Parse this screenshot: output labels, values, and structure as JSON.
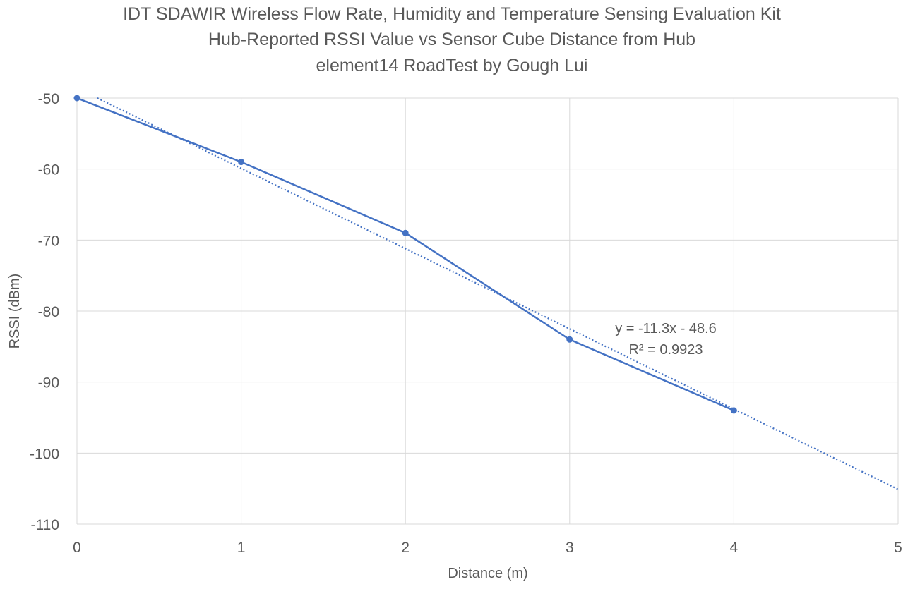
{
  "chart_data": {
    "type": "scatter",
    "title": [
      "IDT SDAWIR Wireless Flow Rate, Humidity and Temperature Sensing Evaluation Kit",
      "Hub-Reported RSSI Value vs Sensor Cube Distance from Hub",
      "element14 RoadTest by Gough Lui"
    ],
    "xlabel": "Distance (m)",
    "ylabel": "RSSI (dBm)",
    "xlim": [
      0,
      5
    ],
    "ylim": [
      -110,
      -50
    ],
    "xticks": [
      "0",
      "1",
      "2",
      "3",
      "4",
      "5"
    ],
    "yticks": [
      "-50",
      "-60",
      "-70",
      "-80",
      "-90",
      "-100",
      "-110"
    ],
    "grid": true,
    "series": [
      {
        "x": [
          0,
          1,
          2,
          3,
          4
        ],
        "values": [
          -50,
          -59,
          -69,
          -84,
          -94
        ],
        "color": "#4472C4",
        "style": "line-with-markers"
      }
    ],
    "trendline": {
      "slope": -11.3,
      "intercept": -48.6,
      "x_range": [
        0,
        5
      ],
      "color": "#4472C4",
      "style": "dotted",
      "equation": "y = -11.3x - 48.6",
      "r_squared": "R² = 0.9923"
    }
  }
}
